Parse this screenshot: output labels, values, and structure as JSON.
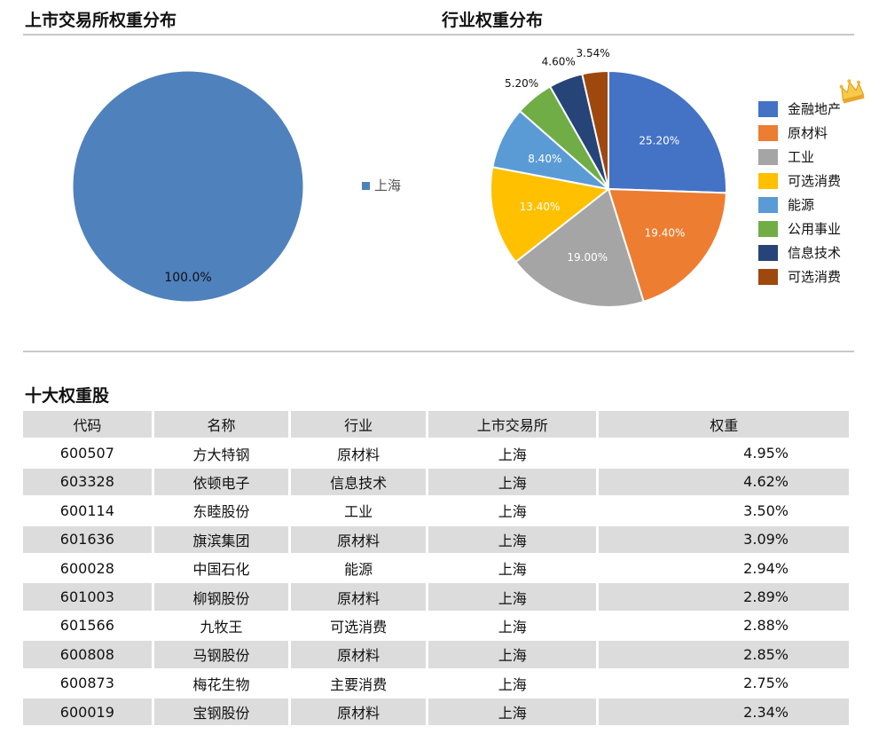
{
  "left_title": "上市交易所权重分布",
  "right_title": "行业权重分布",
  "table_title": "十大权重股",
  "chart_data": [
    {
      "type": "pie",
      "title": "上市交易所权重分布",
      "slices": [
        {
          "label": "上海",
          "value": 100.0,
          "display": "100.0%",
          "color": "#4f81bd"
        }
      ],
      "legend": [
        "上海"
      ],
      "legend_position": "right"
    },
    {
      "type": "pie",
      "title": "行业权重分布",
      "slices": [
        {
          "label": "金融地产",
          "value": 25.2,
          "display": "25.20%",
          "color": "#4472c4"
        },
        {
          "label": "原材料",
          "value": 19.4,
          "display": "19.40%",
          "color": "#ed7d31"
        },
        {
          "label": "工业",
          "value": 19.0,
          "display": "19.00%",
          "color": "#a5a5a5"
        },
        {
          "label": "可选消费",
          "value": 13.4,
          "display": "13.40%",
          "color": "#ffc000"
        },
        {
          "label": "能源",
          "value": 8.4,
          "display": "8.40%",
          "color": "#5b9bd5"
        },
        {
          "label": "公用事业",
          "value": 5.2,
          "display": "5.20%",
          "color": "#70ad47"
        },
        {
          "label": "信息技术",
          "value": 4.6,
          "display": "4.60%",
          "color": "#264478"
        },
        {
          "label": "可选消费",
          "value": 3.54,
          "display": "3.54%",
          "color": "#9e480e"
        }
      ],
      "legend": [
        "金融地产",
        "原材料",
        "工业",
        "可选消费",
        "能源",
        "公用事业",
        "信息技术",
        "可选消费"
      ],
      "legend_position": "right"
    }
  ],
  "table": {
    "headers": [
      "代码",
      "名称",
      "行业",
      "上市交易所",
      "权重"
    ],
    "rows": [
      [
        "600507",
        "方大特钢",
        "原材料",
        "上海",
        "4.95%"
      ],
      [
        "603328",
        "依顿电子",
        "信息技术",
        "上海",
        "4.62%"
      ],
      [
        "600114",
        "东睦股份",
        "工业",
        "上海",
        "3.50%"
      ],
      [
        "601636",
        "旗滨集团",
        "原材料",
        "上海",
        "3.09%"
      ],
      [
        "600028",
        "中国石化",
        "能源",
        "上海",
        "2.94%"
      ],
      [
        "601003",
        "柳钢股份",
        "原材料",
        "上海",
        "2.89%"
      ],
      [
        "601566",
        "九牧王",
        "可选消费",
        "上海",
        "2.88%"
      ],
      [
        "600808",
        "马钢股份",
        "原材料",
        "上海",
        "2.85%"
      ],
      [
        "600873",
        "梅花生物",
        "主要消费",
        "上海",
        "2.75%"
      ],
      [
        "600019",
        "宝钢股份",
        "原材料",
        "上海",
        "2.34%"
      ]
    ]
  },
  "decor": {
    "crown_icon": "crown-icon"
  }
}
